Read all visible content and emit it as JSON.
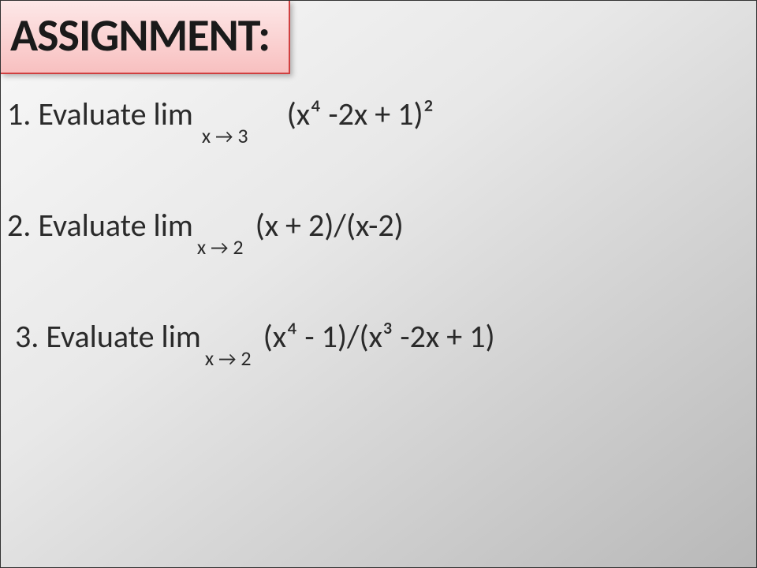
{
  "title": "ASSIGNMENT:",
  "title_box": {
    "background_gradient_top": "#fde8e8",
    "background_gradient_bottom": "#f8c0c0",
    "border_color": "#d04040"
  },
  "slide_background": {
    "gradient_start": "#f8f8f8",
    "gradient_end": "#b8b8b8"
  },
  "text_color": "#2a2a2a",
  "font_family": "Calibri",
  "problems": [
    {
      "number": "1.",
      "prefix": "Evaluate lim",
      "subscript_var": "x",
      "subscript_arrow": "→",
      "subscript_target": "3",
      "expression": "(x⁴ -2x + 1)²",
      "subscript_spacing": "spaced"
    },
    {
      "number": "2.",
      "prefix": "Evaluate lim",
      "subscript_var": "x",
      "subscript_arrow": "→",
      "subscript_target": "2",
      "expression": "(x + 2)/(x-2)",
      "subscript_spacing": "near"
    },
    {
      "number": "3.",
      "prefix": "Evaluate lim",
      "subscript_var": "x",
      "subscript_arrow": "→",
      "subscript_target": "2",
      "expression": "(x⁴ - 1)/(x³ -2x + 1)",
      "subscript_spacing": "near"
    }
  ]
}
